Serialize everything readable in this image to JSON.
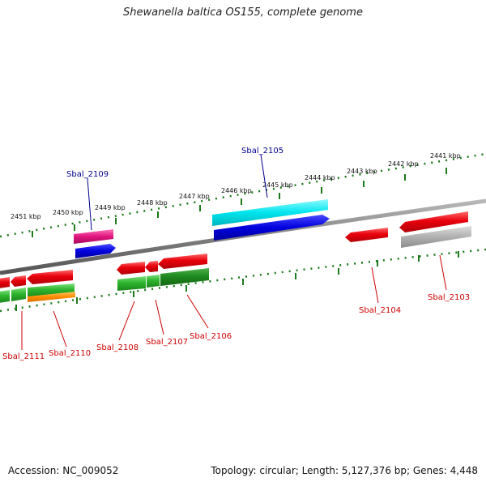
{
  "title": "Shewanella baltica OS155, complete genome",
  "footer": {
    "accession": "Accession: NC_009052",
    "stats": "Topology: circular; Length: 5,127,376 bp; Genes: 4,448"
  },
  "colors": {
    "backbone": "#808080",
    "tick": "#1b7a1b",
    "forward_label": "#00008b",
    "reverse_label": "#cc0000",
    "red": "#e8000b",
    "green": "#2db52d",
    "darkgreen": "#1f8a1f",
    "orange": "#ff8c00",
    "magenta": "#e0147e",
    "blue": "#0000dd",
    "cyan": "#00e5ee",
    "gray": "#b0b0b0"
  },
  "tick_labels": [
    "2451 kbp",
    "2450 kbp",
    "2449 kbp",
    "2448 kbp",
    "2447 kbp",
    "2446 kbp",
    "2445 kbp",
    "2444 kbp",
    "2443 kbp",
    "2442 kbp",
    "2441 kbp"
  ],
  "genes": {
    "forward": [
      {
        "label": "Sbal_2109"
      },
      {
        "label": "Sbal_2105"
      }
    ],
    "reverse": [
      {
        "label": "Sbal_2111"
      },
      {
        "label": "Sbal_2110"
      },
      {
        "label": "Sbal_2108"
      },
      {
        "label": "Sbal_2107"
      },
      {
        "label": "Sbal_2106"
      },
      {
        "label": "Sbal_2104"
      },
      {
        "label": "Sbal_2103"
      }
    ]
  }
}
